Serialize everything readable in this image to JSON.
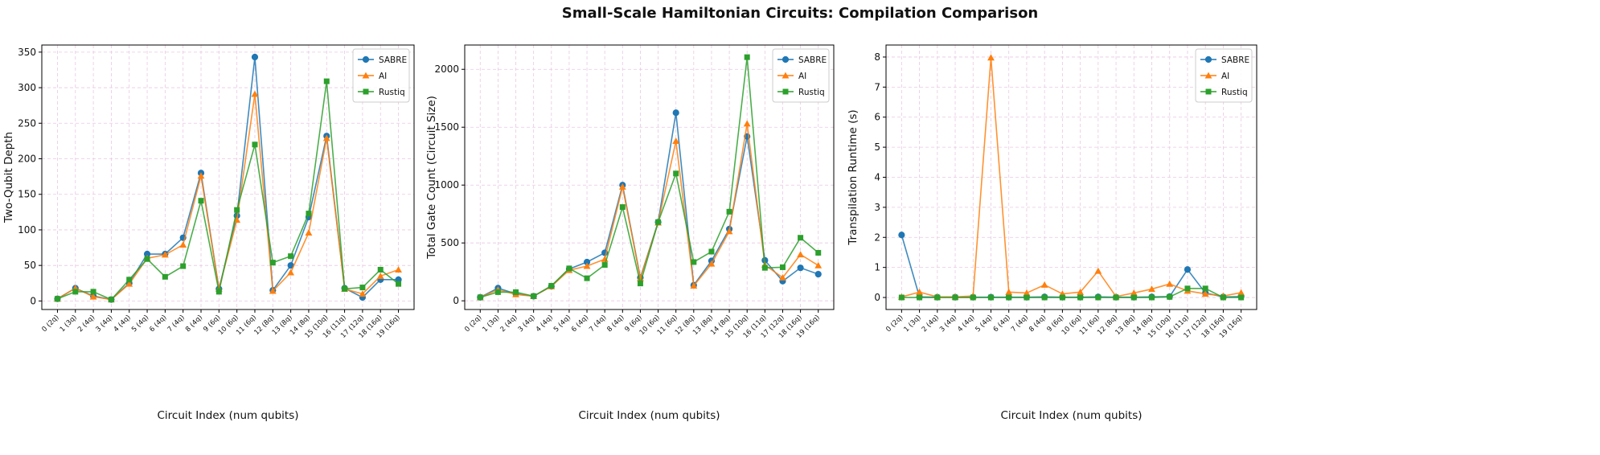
{
  "title": "Small-Scale Hamiltonian Circuits: Compilation Comparison",
  "colors": {
    "SABRE": "#1f77b4",
    "AI": "#ff7f0e",
    "Rustiq": "#2ca02c",
    "grid": "#e8c8e0"
  },
  "chart_data": [
    {
      "type": "line",
      "xlabel": "Circuit Index (num qubits)",
      "ylabel": "Two-Qubit Depth",
      "categories": [
        "0 (2q)",
        "1 (3q)",
        "2 (4q)",
        "3 (4q)",
        "4 (4q)",
        "5 (4q)",
        "6 (4q)",
        "7 (4q)",
        "8 (4q)",
        "9 (6q)",
        "10 (6q)",
        "11 (6q)",
        "12 (8q)",
        "13 (8q)",
        "14 (8q)",
        "15 (10q)",
        "16 (11q)",
        "17 (12q)",
        "18 (16q)",
        "19 (16q)"
      ],
      "ylim": [
        -12,
        360
      ],
      "yticks": [
        0,
        50,
        100,
        150,
        200,
        250,
        300,
        350
      ],
      "legend": "top-right",
      "grid": true,
      "series": [
        {
          "name": "SABRE",
          "marker": "circle",
          "values": [
            3,
            18,
            7,
            2,
            25,
            66,
            66,
            89,
            180,
            17,
            120,
            343,
            15,
            50,
            118,
            232,
            18,
            5,
            30,
            30
          ]
        },
        {
          "name": "AI",
          "marker": "triangle",
          "values": [
            3,
            18,
            6,
            2,
            24,
            60,
            65,
            79,
            176,
            17,
            114,
            291,
            14,
            40,
            96,
            229,
            17,
            10,
            35,
            44
          ]
        },
        {
          "name": "Rustiq",
          "marker": "square",
          "values": [
            3,
            13,
            13,
            2,
            30,
            59,
            34,
            49,
            141,
            13,
            128,
            220,
            54,
            63,
            123,
            309,
            17,
            19,
            44,
            24
          ]
        }
      ]
    },
    {
      "type": "line",
      "xlabel": "Circuit Index (num qubits)",
      "ylabel": "Total Gate Count (Circuit Size)",
      "categories": [
        "0 (2q)",
        "1 (3q)",
        "2 (4q)",
        "3 (4q)",
        "4 (4q)",
        "5 (4q)",
        "6 (4q)",
        "7 (4q)",
        "8 (4q)",
        "9 (6q)",
        "10 (6q)",
        "11 (6q)",
        "12 (8q)",
        "13 (8q)",
        "14 (8q)",
        "15 (10q)",
        "16 (11q)",
        "17 (12q)",
        "18 (16q)",
        "19 (16q)"
      ],
      "ylim": [
        -75,
        2210
      ],
      "yticks": [
        0,
        500,
        1000,
        1500,
        2000
      ],
      "legend": "top-right",
      "grid": true,
      "series": [
        {
          "name": "SABRE",
          "marker": "circle",
          "values": [
            30,
            110,
            60,
            40,
            125,
            275,
            335,
            415,
            1000,
            200,
            680,
            1625,
            135,
            345,
            620,
            1420,
            350,
            170,
            285,
            230
          ]
        },
        {
          "name": "AI",
          "marker": "triangle",
          "values": [
            30,
            95,
            55,
            40,
            125,
            265,
            300,
            360,
            985,
            195,
            675,
            1380,
            130,
            320,
            600,
            1530,
            310,
            200,
            400,
            305
          ]
        },
        {
          "name": "Rustiq",
          "marker": "square",
          "values": [
            30,
            75,
            75,
            40,
            130,
            280,
            195,
            310,
            810,
            150,
            680,
            1100,
            335,
            425,
            770,
            2105,
            285,
            290,
            545,
            415
          ]
        }
      ]
    },
    {
      "type": "line",
      "xlabel": "Circuit Index (num qubits)",
      "ylabel": "Transpilation Runtime (s)",
      "categories": [
        "0 (2q)",
        "1 (3q)",
        "2 (4q)",
        "3 (4q)",
        "4 (4q)",
        "5 (4q)",
        "6 (4q)",
        "7 (4q)",
        "8 (4q)",
        "9 (6q)",
        "10 (6q)",
        "11 (6q)",
        "12 (8q)",
        "13 (8q)",
        "14 (8q)",
        "15 (10q)",
        "16 (11q)",
        "17 (12q)",
        "18 (16q)",
        "19 (16q)"
      ],
      "ylim": [
        -0.4,
        8.4
      ],
      "yticks": [
        0,
        1,
        2,
        3,
        4,
        5,
        6,
        7,
        8
      ],
      "legend": "top-right",
      "grid": true,
      "series": [
        {
          "name": "SABRE",
          "marker": "circle",
          "values": [
            2.08,
            0.02,
            0.01,
            0.01,
            0.01,
            0.01,
            0.01,
            0.01,
            0.02,
            0.01,
            0.01,
            0.02,
            0.01,
            0.01,
            0.02,
            0.03,
            0.93,
            0.15,
            0.02,
            0.03
          ]
        },
        {
          "name": "AI",
          "marker": "triangle",
          "values": [
            0.02,
            0.18,
            0.02,
            0.02,
            0.05,
            7.98,
            0.18,
            0.15,
            0.42,
            0.12,
            0.18,
            0.88,
            0.03,
            0.15,
            0.28,
            0.45,
            0.22,
            0.12,
            0.05,
            0.16
          ]
        },
        {
          "name": "Rustiq",
          "marker": "square",
          "values": [
            0.0,
            0.0,
            0.0,
            0.0,
            0.0,
            0.0,
            0.0,
            0.0,
            0.0,
            0.0,
            0.0,
            0.0,
            0.0,
            0.0,
            0.0,
            0.02,
            0.3,
            0.3,
            0.0,
            0.0
          ]
        }
      ]
    }
  ]
}
